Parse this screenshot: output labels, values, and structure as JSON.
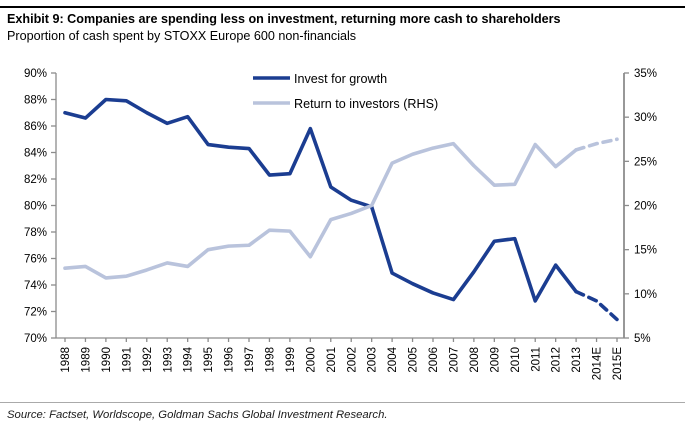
{
  "header": {
    "title": "Exhibit 9: Companies are spending less on investment, returning more cash to shareholders",
    "subtitle": "Proportion of cash spent by STOXX Europe 600 non-financials"
  },
  "footer": {
    "source": "Source: Factset, Worldscope, Goldman Sachs Global Investment Research."
  },
  "chart_data": {
    "type": "line",
    "title": "Exhibit 9: Companies are spending less on investment, returning more cash to shareholders",
    "subtitle": "Proportion of cash spent by STOXX Europe 600 non-financials",
    "categories": [
      "1988",
      "1989",
      "1990",
      "1991",
      "1992",
      "1993",
      "1994",
      "1995",
      "1996",
      "1997",
      "1998",
      "1999",
      "2000",
      "2001",
      "2002",
      "2003",
      "2004",
      "2005",
      "2006",
      "2007",
      "2008",
      "2009",
      "2010",
      "2011",
      "2012",
      "2013",
      "2014E",
      "2015E"
    ],
    "series": [
      {
        "name": "Invest for growth",
        "axis": "left",
        "color": "#1b3d91",
        "values": [
          87.0,
          86.6,
          88.0,
          87.9,
          87.0,
          86.2,
          86.7,
          84.6,
          84.4,
          84.3,
          82.3,
          82.4,
          85.8,
          81.4,
          80.4,
          79.9,
          74.9,
          74.1,
          73.4,
          72.9,
          75.0,
          77.3,
          77.5,
          72.8,
          75.5,
          73.5,
          72.8,
          71.4
        ]
      },
      {
        "name": "Return to investors (RHS)",
        "axis": "right",
        "color": "#b9c3dc",
        "values": [
          12.9,
          13.1,
          11.8,
          12.0,
          12.7,
          13.5,
          13.1,
          15.0,
          15.4,
          15.5,
          17.2,
          17.1,
          14.2,
          18.4,
          19.1,
          20.0,
          24.8,
          25.8,
          26.5,
          27.0,
          24.5,
          22.3,
          22.4,
          26.9,
          24.4,
          26.3,
          27.0,
          27.5
        ]
      }
    ],
    "axes": {
      "left": {
        "min": 70,
        "max": 90,
        "tick_labels": [
          "90%",
          "88%",
          "86%",
          "84%",
          "82%",
          "80%",
          "78%",
          "76%",
          "74%",
          "72%",
          "70%"
        ]
      },
      "right": {
        "min": 5,
        "max": 35,
        "tick_labels": [
          "35%",
          "30%",
          "25%",
          "20%",
          "15%",
          "10%",
          "5%"
        ]
      }
    },
    "dashed_from_index": 25,
    "grid": false,
    "legend_position": "top-center",
    "axis_color": "#8c8c8c"
  }
}
